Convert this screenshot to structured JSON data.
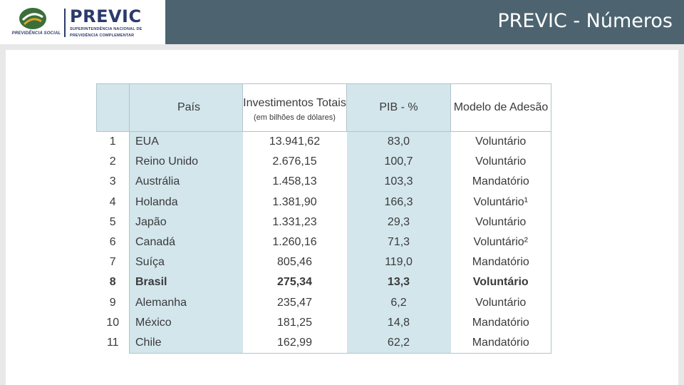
{
  "header": {
    "title": "PREVIC - Números",
    "logo_left_caption": "PREVIDÊNCIA SOCIAL",
    "logo_right_brand": "PREVIC",
    "logo_right_sub_1": "SUPERINTENDÊNCIA NACIONAL DE",
    "logo_right_sub_2": "PREVIDÊNCIA COMPLEMENTAR"
  },
  "table": {
    "headers": {
      "country": "País",
      "investments": "Investimentos Totais",
      "investments_unit": "(em bilhões de dólares)",
      "gdp": "PIB - %",
      "model": "Modelo de Adesão"
    },
    "rows": [
      {
        "rank": "1",
        "country": "EUA",
        "investments": "13.941,62",
        "gdp": "83,0",
        "model": "Voluntário"
      },
      {
        "rank": "2",
        "country": "Reino Unido",
        "investments": "2.676,15",
        "gdp": "100,7",
        "model": "Voluntário"
      },
      {
        "rank": "3",
        "country": "Austrália",
        "investments": "1.458,13",
        "gdp": "103,3",
        "model": "Mandatório"
      },
      {
        "rank": "4",
        "country": "Holanda",
        "investments": "1.381,90",
        "gdp": "166,3",
        "model": "Voluntário¹"
      },
      {
        "rank": "5",
        "country": "Japão",
        "investments": "1.331,23",
        "gdp": "29,3",
        "model": "Voluntário"
      },
      {
        "rank": "6",
        "country": "Canadá",
        "investments": "1.260,16",
        "gdp": "71,3",
        "model": "Voluntário²"
      },
      {
        "rank": "7",
        "country": "Suíça",
        "investments": "805,46",
        "gdp": "119,0",
        "model": "Mandatório"
      },
      {
        "rank": "8",
        "country": "Brasil",
        "investments": "275,34",
        "gdp": "13,3",
        "model": "Voluntário"
      },
      {
        "rank": "9",
        "country": "Alemanha",
        "investments": "235,47",
        "gdp": "6,2",
        "model": "Voluntário"
      },
      {
        "rank": "10",
        "country": "México",
        "investments": "181,25",
        "gdp": "14,8",
        "model": "Mandatório"
      },
      {
        "rank": "11",
        "country": "Chile",
        "investments": "162,99",
        "gdp": "62,2",
        "model": "Mandatório"
      }
    ],
    "highlight_row": "8"
  }
}
